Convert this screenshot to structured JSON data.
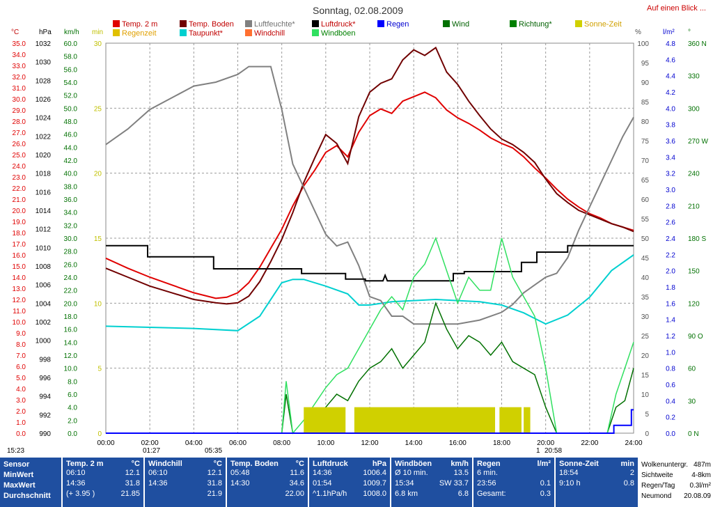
{
  "title": "Sonntag, 02.08.2009",
  "link_label": "Auf einen Blick ...",
  "axis_units": {
    "temp": "°C",
    "pressure": "hPa",
    "wind": "km/h",
    "minutes": "min",
    "percent": "%",
    "rain": "l/m²",
    "direction": "°"
  },
  "legend": [
    {
      "label": "Temp. 2 m",
      "color": "#e00000"
    },
    {
      "label": "Regenzeit",
      "color": "#e0c000"
    },
    {
      "label": "Temp. Boden",
      "color": "#700000"
    },
    {
      "label": "Taupunkt*",
      "color": "#00d0d0"
    },
    {
      "label": "Luftfeuchte*",
      "color": "#808080"
    },
    {
      "label": "Windchill",
      "color": "#ff7030"
    },
    {
      "label": "Luftdruck*",
      "color": "#000000"
    },
    {
      "label": "Windböen",
      "color": "#30e060"
    },
    {
      "label": "Regen",
      "color": "#0000ff"
    },
    {
      "label": "Wind",
      "color": "#007000"
    },
    {
      "label": "Richtung*",
      "color": "#008000"
    },
    {
      "label": "Sonne-Zeit",
      "color": "#d0d000"
    }
  ],
  "chart_data": {
    "type": "line",
    "x_ticks": [
      "00:00",
      "02:00",
      "04:00",
      "06:00",
      "08:00",
      "10:00",
      "12:00",
      "14:00",
      "16:00",
      "18:00",
      "20:00",
      "22:00",
      "24:00"
    ],
    "y_axes": {
      "temp": {
        "ticks": [
          "35.0",
          "34.0",
          "33.0",
          "32.0",
          "31.0",
          "30.0",
          "29.0",
          "28.0",
          "27.0",
          "26.0",
          "25.0",
          "24.0",
          "23.0",
          "22.0",
          "21.0",
          "20.0",
          "19.0",
          "18.0",
          "17.0",
          "16.0",
          "15.0",
          "14.0",
          "13.0",
          "12.0",
          "11.0",
          "10.0",
          "9.0",
          "8.0",
          "7.0",
          "6.0",
          "5.0",
          "4.0",
          "3.0",
          "2.0",
          "1.0",
          "0.0"
        ],
        "ylim": [
          0,
          35
        ],
        "color": "#e00000"
      },
      "pressure": {
        "ticks": [
          "1032",
          "1030",
          "1028",
          "1026",
          "1024",
          "1022",
          "1020",
          "1018",
          "1016",
          "1014",
          "1012",
          "1010",
          "1008",
          "1006",
          "1004",
          "1002",
          "1000",
          "998",
          "996",
          "994",
          "992",
          "990"
        ],
        "ylim": [
          990,
          1032
        ],
        "color": "#000000"
      },
      "wind": {
        "ticks": [
          "60.0",
          "58.0",
          "56.0",
          "54.0",
          "52.0",
          "50.0",
          "48.0",
          "46.0",
          "44.0",
          "42.0",
          "40.0",
          "38.0",
          "36.0",
          "34.0",
          "32.0",
          "30.0",
          "28.0",
          "26.0",
          "24.0",
          "22.0",
          "20.0",
          "18.0",
          "16.0",
          "14.0",
          "12.0",
          "10.0",
          "8.0",
          "6.0",
          "4.0",
          "2.0",
          "0.0"
        ],
        "ylim": [
          0,
          60
        ],
        "color": "#007000"
      },
      "minutes": {
        "ticks": [
          "30",
          "25",
          "20",
          "15",
          "10",
          "5",
          "0"
        ],
        "ylim": [
          0,
          30
        ],
        "color": "#c0c000"
      },
      "percent": {
        "ticks": [
          "100",
          "95",
          "90",
          "85",
          "80",
          "75",
          "70",
          "65",
          "60",
          "55",
          "50",
          "45",
          "40",
          "35",
          "30",
          "25",
          "20",
          "15",
          "10",
          "5",
          "0"
        ],
        "ylim": [
          0,
          100
        ],
        "color": "#505050"
      },
      "rain": {
        "ticks": [
          "4.8",
          "4.6",
          "4.4",
          "4.2",
          "4.0",
          "3.8",
          "3.6",
          "3.4",
          "3.2",
          "3.0",
          "2.8",
          "2.6",
          "2.4",
          "2.2",
          "2.0",
          "1.8",
          "1.6",
          "1.4",
          "1.2",
          "1.0",
          "0.8",
          "0.6",
          "0.4",
          "0.2",
          "0.0"
        ],
        "ylim": [
          0,
          5
        ],
        "color": "#0000d0"
      },
      "direction": {
        "ticks": [
          "360 N",
          "330",
          "300",
          "270 W",
          "240",
          "210",
          "180 S",
          "150",
          "120",
          "90 O",
          "60",
          "30",
          "0 N"
        ],
        "ylim": [
          0,
          360
        ],
        "color": "#007000"
      }
    },
    "series": [
      {
        "name": "Temp. 2 m",
        "axis": "temp",
        "color": "#e00000",
        "x": [
          0,
          1,
          2,
          3,
          4,
          5,
          5.5,
          6,
          6.5,
          7,
          7.5,
          8,
          8.5,
          9,
          9.5,
          10,
          10.5,
          11,
          11.5,
          12,
          12.5,
          13,
          13.5,
          14,
          14.5,
          15,
          15.5,
          16,
          16.5,
          17,
          17.5,
          18,
          18.5,
          19,
          19.5,
          20,
          20.5,
          21,
          21.5,
          22,
          22.5,
          23,
          23.5,
          24
        ],
        "y": [
          15.7,
          14.8,
          14.0,
          13.3,
          12.6,
          12.1,
          12.2,
          12.6,
          13.5,
          14.9,
          16.6,
          18.3,
          20.4,
          22.2,
          23.6,
          25.2,
          25.8,
          24.8,
          27.0,
          28.5,
          29.1,
          28.7,
          29.8,
          30.2,
          30.6,
          30.1,
          29.0,
          28.3,
          27.8,
          27.2,
          26.5,
          26.0,
          25.6,
          24.8,
          23.8,
          22.9,
          21.9,
          21.0,
          20.3,
          19.7,
          19.3,
          18.8,
          18.5,
          18.2
        ]
      },
      {
        "name": "Temp. Boden",
        "axis": "temp",
        "color": "#700000",
        "x": [
          0,
          1,
          2,
          3,
          4,
          5,
          5.5,
          6,
          6.5,
          7,
          7.5,
          8,
          8.5,
          9,
          9.5,
          10,
          10.5,
          11,
          11.5,
          12,
          12.5,
          13,
          13.5,
          14,
          14.5,
          15,
          15.5,
          16,
          16.5,
          17,
          17.5,
          18,
          18.5,
          19,
          19.5,
          20,
          20.5,
          21,
          21.5,
          22,
          22.5,
          23,
          23.5,
          24
        ],
        "y": [
          14.8,
          14.0,
          13.2,
          12.6,
          12.0,
          11.7,
          11.6,
          11.7,
          12.3,
          13.6,
          15.4,
          17.4,
          19.8,
          22.5,
          24.7,
          26.8,
          26.0,
          24.2,
          28.4,
          30.6,
          31.4,
          31.8,
          33.5,
          34.4,
          33.9,
          34.6,
          32.4,
          31.3,
          29.8,
          28.5,
          27.3,
          26.4,
          25.9,
          25.2,
          24.3,
          22.8,
          21.5,
          20.7,
          20.0,
          19.6,
          19.2,
          18.8,
          18.5,
          18.1
        ]
      },
      {
        "name": "Taupunkt*",
        "axis": "temp",
        "color": "#00d0d0",
        "x": [
          0,
          2,
          4,
          6,
          7,
          8,
          8.5,
          9,
          10,
          11,
          11.5,
          12,
          13,
          14,
          15,
          16,
          17,
          18,
          19,
          20,
          21,
          22,
          23,
          24
        ],
        "y": [
          9.6,
          9.5,
          9.4,
          9.2,
          10.5,
          13.5,
          13.8,
          13.8,
          13.2,
          12.5,
          11.5,
          11.5,
          11.8,
          11.9,
          12.0,
          11.9,
          11.8,
          11.5,
          10.8,
          9.8,
          10.6,
          12.2,
          14.6,
          16.0
        ]
      },
      {
        "name": "Luftfeuchte*",
        "axis": "percent",
        "color": "#808080",
        "x": [
          0,
          1,
          2,
          3,
          4,
          5,
          6,
          6.5,
          7,
          7.5,
          8,
          8.5,
          9,
          9.5,
          10,
          10.5,
          11,
          11.5,
          12,
          12.5,
          13,
          13.5,
          14,
          15,
          16,
          17,
          18,
          18.5,
          19,
          19.5,
          20,
          20.5,
          21,
          21.5,
          22,
          22.5,
          23,
          23.5,
          24
        ],
        "y": [
          74,
          78,
          83,
          86,
          89,
          90,
          92,
          94,
          94,
          94,
          83,
          69,
          63,
          57,
          51,
          48,
          49,
          43,
          35,
          34,
          30,
          30,
          28,
          28,
          28,
          29,
          31,
          33,
          36,
          38,
          40,
          41,
          45,
          52,
          58,
          64,
          70,
          76,
          81
        ]
      },
      {
        "name": "Luftdruck*",
        "axis": "pressure",
        "color": "#000000",
        "x": [
          0,
          1.9,
          1.9,
          4.9,
          4.9,
          8.9,
          8.9,
          10.9,
          10.9,
          11.8,
          11.8,
          12.6,
          12.7,
          12.8,
          13.3,
          13.3,
          15.8,
          15.8,
          16.3,
          16.3,
          18.9,
          18.9,
          19.6,
          19.6,
          21.0,
          21.0,
          24
        ],
        "y": [
          1010.2,
          1010.2,
          1009.0,
          1009.0,
          1007.7,
          1007.7,
          1007.2,
          1007.2,
          1006.6,
          1006.6,
          1006.4,
          1006.4,
          1007.0,
          1006.4,
          1006.4,
          1006.4,
          1006.4,
          1007.2,
          1007.2,
          1007.4,
          1007.4,
          1008.4,
          1008.4,
          1009.5,
          1009.5,
          1010.2,
          1010.2
        ]
      },
      {
        "name": "Wind",
        "axis": "wind",
        "color": "#007000",
        "x": [
          0,
          8.0,
          8.2,
          8.5,
          9.0,
          10.0,
          10.5,
          11.0,
          11.5,
          12.0,
          12.5,
          13.0,
          13.5,
          14.0,
          14.5,
          15.0,
          15.5,
          16.0,
          16.5,
          17.0,
          17.5,
          18.0,
          18.5,
          19.0,
          19.5,
          20.0,
          20.5,
          22.8,
          23.2,
          23.6,
          24
        ],
        "y": [
          0,
          0,
          6,
          0,
          0,
          4,
          6,
          5,
          8,
          10,
          11,
          13,
          10,
          12,
          14,
          20,
          16,
          13,
          15,
          14,
          12,
          14,
          11,
          10,
          9,
          4,
          0,
          0,
          4,
          5,
          10
        ]
      },
      {
        "name": "Windböen",
        "axis": "wind",
        "color": "#30e060",
        "x": [
          0,
          8.0,
          8.2,
          8.5,
          9.0,
          10.0,
          10.5,
          11.0,
          11.5,
          12.0,
          12.5,
          13.0,
          13.5,
          14.0,
          14.5,
          15.0,
          15.5,
          16.0,
          16.5,
          17.0,
          17.5,
          18.0,
          18.5,
          19.0,
          19.5,
          20.0,
          20.5,
          22.8,
          23.2,
          23.6,
          24
        ],
        "y": [
          0,
          0,
          8,
          0,
          2,
          7,
          9,
          10,
          13,
          16,
          19,
          21,
          19,
          24,
          26,
          30,
          25,
          20,
          24,
          22,
          22,
          30,
          24,
          21,
          18,
          10,
          0,
          0,
          6,
          10,
          14
        ]
      },
      {
        "name": "Sonne-Zeit",
        "axis": "minutes",
        "color": "#d0d000",
        "type": "bar",
        "x": [
          9.0,
          11.0,
          13.5,
          17.9,
          18.0,
          19.0,
          19.1
        ],
        "y": [
          2,
          2,
          2,
          2,
          2,
          2,
          2
        ]
      },
      {
        "name": "Regen",
        "axis": "rain",
        "color": "#0000ff",
        "x": [
          0,
          23.1,
          23.1,
          23.9,
          23.9,
          24
        ],
        "y": [
          0,
          0,
          0.1,
          0.1,
          0.3,
          0.3
        ]
      }
    ],
    "sun_row": {
      "sunrise": "05:35",
      "sunset": "20:58",
      "day_length": "15:23",
      "moon_1": "01:27",
      "moon_2": "1"
    }
  },
  "footer": {
    "labels": [
      "Sensor",
      "MinWert",
      "MaxWert",
      "Durchschnitt"
    ],
    "columns": [
      {
        "name": "Temp. 2 m",
        "unit": "°C",
        "rows": [
          [
            "06:10",
            "12.1"
          ],
          [
            "14:36",
            "31.8"
          ],
          [
            "(+ 3.95 )",
            "21.85"
          ]
        ]
      },
      {
        "name": "Windchill",
        "unit": "°C",
        "rows": [
          [
            "06:10",
            "12.1"
          ],
          [
            "14:36",
            "31.8"
          ],
          [
            "",
            "21.9"
          ]
        ]
      },
      {
        "name": "Temp. Boden",
        "unit": "°C",
        "rows": [
          [
            "05:48",
            "11.6"
          ],
          [
            "14:30",
            "34.6"
          ],
          [
            "",
            "22.00"
          ]
        ]
      },
      {
        "name": "Luftdruck",
        "unit": "hPa",
        "rows": [
          [
            "14:36",
            "1006.4"
          ],
          [
            "01:54",
            "1009.7"
          ],
          [
            "^1.1hPa/h",
            "1008.0"
          ]
        ]
      },
      {
        "name": "Windböen",
        "unit": "km/h",
        "rows": [
          [
            "Ø 10 min.",
            "13.5"
          ],
          [
            "15:34",
            "SW 33.7"
          ],
          [
            "6.8 km",
            "6.8"
          ]
        ]
      },
      {
        "name": "Regen",
        "unit": "l/m²",
        "rows": [
          [
            "6 min.",
            ""
          ],
          [
            "23:56",
            "0.1"
          ],
          [
            "Gesamt:",
            "0.3"
          ]
        ]
      },
      {
        "name": "Sonne-Zeit",
        "unit": "min",
        "rows": [
          [
            "",
            ""
          ],
          [
            "18:54",
            "2"
          ],
          [
            "9:10 h",
            "0.8"
          ]
        ]
      }
    ],
    "info": [
      [
        "Wolkenuntergr.",
        "487m"
      ],
      [
        "Sichtweite",
        "4-8km"
      ],
      [
        "Regen/Tag",
        "0.3l/m²"
      ],
      [
        "Neumond",
        "20.08.09"
      ]
    ]
  }
}
